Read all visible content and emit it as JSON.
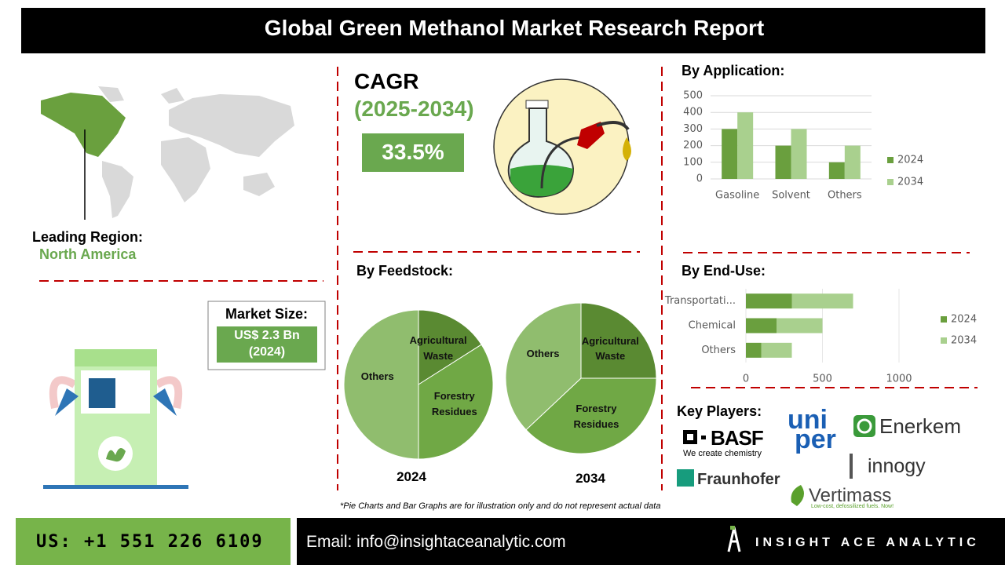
{
  "header": {
    "title": "Global Green Methanol Market Research Report"
  },
  "region": {
    "label": "Leading Region:",
    "name": "North America"
  },
  "market_size": {
    "label": "Market Size:",
    "value": "US$ 2.3 Bn",
    "year": "(2024)"
  },
  "cagr": {
    "label": "CAGR",
    "period": "(2025-2034)",
    "value": "33.5%"
  },
  "feedstock": {
    "title": "By Feedstock:"
  },
  "key_players": {
    "label": "Key Players:",
    "basf": "BASF",
    "basf_tagline": "We create chemistry",
    "uniper_top": "uni",
    "uniper_bottom": "per",
    "enerkem": "Enerkem",
    "innogy": "innogy",
    "fraunhofer": "Fraunhofer",
    "vertimass": "Vertimass",
    "vertimass_tagline": "Low-cost, defossilized fuels. Now!"
  },
  "footnote": "*Pie Charts and Bar Graphs are for illustration only and do not represent actual data",
  "footer": {
    "phone": "US: +1 551 226 6109",
    "email": "Email: info@insightaceanalytic.com",
    "brand": "INSIGHT ACE ANALYTIC"
  },
  "chart_data": [
    {
      "type": "bar",
      "title": "By Application:",
      "categories": [
        "Gasoline",
        "Solvent",
        "Others"
      ],
      "series": [
        {
          "name": "2024",
          "color": "#6a9f3e",
          "values": [
            300,
            200,
            100
          ]
        },
        {
          "name": "2034",
          "color": "#a9d08e",
          "values": [
            400,
            300,
            200
          ]
        }
      ],
      "ylim": [
        0,
        500
      ],
      "yticks": [
        0,
        100,
        200,
        300,
        400,
        500
      ],
      "grid": true,
      "legend": "right"
    },
    {
      "type": "pie",
      "title": "2024",
      "categories": [
        "Agricultural Waste",
        "Forestry Residues",
        "Others"
      ],
      "values": [
        16,
        34,
        50
      ],
      "colors": [
        "#5a8a32",
        "#70a845",
        "#90bd6e"
      ]
    },
    {
      "type": "pie",
      "title": "2034",
      "categories": [
        "Agricultural Waste",
        "Forestry Residues",
        "Others"
      ],
      "values": [
        25,
        38,
        37
      ],
      "colors": [
        "#5a8a32",
        "#70a845",
        "#90bd6e"
      ]
    },
    {
      "type": "hbar-stacked",
      "title": "By End-Use:",
      "categories": [
        "Transportati...",
        "Chemical",
        "Others"
      ],
      "series": [
        {
          "name": "2024",
          "color": "#6a9f3e",
          "values": [
            300,
            200,
            100
          ]
        },
        {
          "name": "2034",
          "color": "#a9d08e",
          "values": [
            400,
            300,
            200
          ]
        }
      ],
      "xlim": [
        0,
        1000
      ],
      "xticks": [
        0,
        500,
        1000
      ],
      "grid": true,
      "legend": "right"
    }
  ]
}
